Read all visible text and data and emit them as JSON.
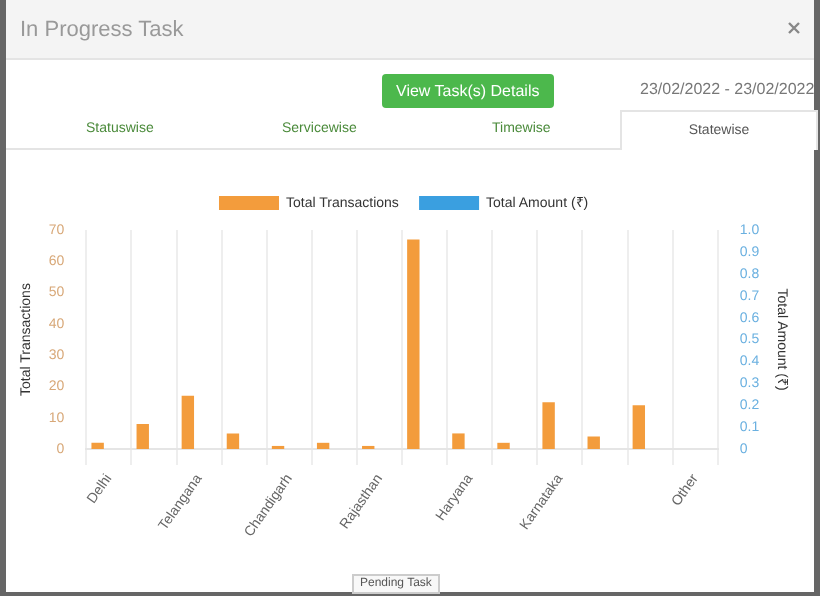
{
  "chart_data": {
    "type": "bar",
    "categories": [
      "Delhi",
      null,
      "Telangana",
      null,
      "Chandigarh",
      null,
      "Rajasthan",
      null,
      "Haryana",
      null,
      "Karnataka",
      null,
      null,
      "Other"
    ],
    "series": [
      {
        "name": "Total Transactions",
        "color": "#f39c3c",
        "values": [
          2,
          8,
          17,
          5,
          1,
          2,
          1,
          67,
          5,
          2,
          15,
          4,
          14,
          0
        ]
      },
      {
        "name": "Total Amount (₹)",
        "color": "#3a9fe0",
        "axis": "y2",
        "values": [
          0,
          0,
          0,
          0,
          0,
          0,
          0,
          0,
          0,
          0,
          0,
          0,
          0,
          0
        ]
      }
    ],
    "ylabel": "Total Transactions",
    "y2label": "Total Amount (₹)",
    "ylim": [
      0,
      70
    ],
    "yticks": [
      0,
      10,
      20,
      30,
      40,
      50,
      60,
      70
    ],
    "y2lim": [
      0,
      1
    ],
    "y2ticks": [
      0,
      0.1,
      0.2,
      0.3,
      0.4,
      0.5,
      0.6,
      0.7,
      0.8,
      0.9,
      {
        "value": 1,
        "label": "1.0"
      }
    ],
    "grid": "x",
    "legend": "top",
    "annotations": [
      "In Progress Task",
      "View Task(s) Details",
      "23/02/2022 - 23/02/2022",
      "Statuswise",
      "Servicewise",
      "Timewise",
      "Statewise",
      "Pending Task"
    ]
  }
}
